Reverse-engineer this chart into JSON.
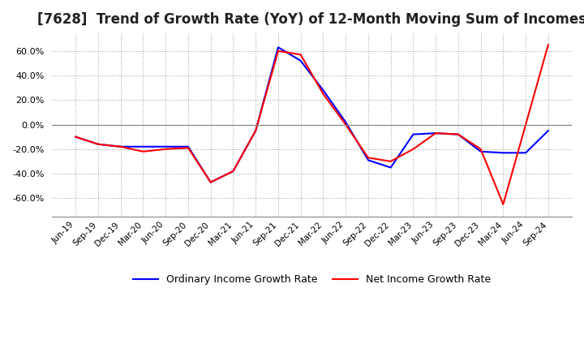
{
  "title": "[7628]  Trend of Growth Rate (YoY) of 12-Month Moving Sum of Incomes",
  "title_fontsize": 12,
  "legend_labels": [
    "Ordinary Income Growth Rate",
    "Net Income Growth Rate"
  ],
  "x_labels": [
    "Jun-19",
    "Sep-19",
    "Dec-19",
    "Mar-20",
    "Jun-20",
    "Sep-20",
    "Dec-20",
    "Mar-21",
    "Jun-21",
    "Sep-21",
    "Dec-21",
    "Mar-22",
    "Jun-22",
    "Sep-22",
    "Dec-22",
    "Mar-23",
    "Jun-23",
    "Sep-23",
    "Dec-23",
    "Mar-24",
    "Jun-24",
    "Sep-24"
  ],
  "ordinary_income_growth": [
    -10.0,
    -16.0,
    -18.0,
    -18.0,
    -18.0,
    -18.0,
    -47.0,
    -38.0,
    -5.0,
    63.0,
    52.0,
    28.0,
    2.0,
    -29.0,
    -35.0,
    -8.0,
    -7.0,
    -8.0,
    -22.0,
    -23.0,
    -23.0,
    -5.0
  ],
  "net_income_growth": [
    -10.0,
    -16.0,
    -18.0,
    -22.0,
    -20.0,
    -19.0,
    -47.0,
    -38.0,
    -5.0,
    60.0,
    57.0,
    25.0,
    0.0,
    -27.0,
    -30.0,
    -20.0,
    -7.0,
    -8.0,
    -20.0,
    -65.0,
    0.0,
    65.0
  ],
  "ylim": [
    -75,
    75
  ],
  "yticks": [
    -60,
    -40,
    -20,
    0,
    20,
    40,
    60
  ],
  "background_color": "#ffffff",
  "grid_color": "#aaaaaa",
  "zero_line_color": "#888888",
  "line_color_ordinary": "#0000ff",
  "line_color_net": "#ff0000",
  "line_width": 1.5
}
